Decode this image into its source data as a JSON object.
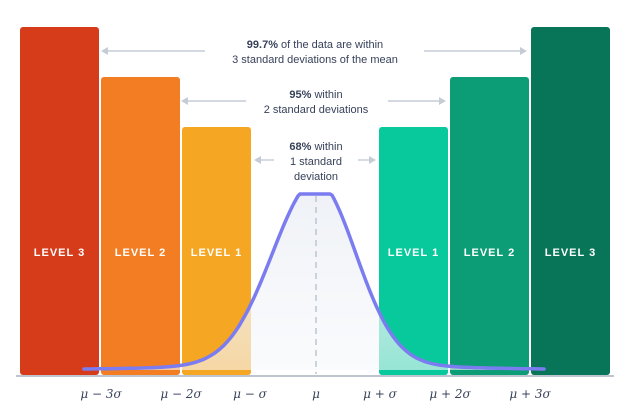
{
  "bars": [
    {
      "label": "LEVEL 3",
      "color": "#d63b1a"
    },
    {
      "label": "LEVEL 2",
      "color": "#f27d22"
    },
    {
      "label": "LEVEL 1",
      "color": "#f5a623"
    },
    {
      "label": "LEVEL 1",
      "color": "#08c99b"
    },
    {
      "label": "LEVEL 2",
      "color": "#0c9d77"
    },
    {
      "label": "LEVEL 3",
      "color": "#087558"
    }
  ],
  "annotations": {
    "three_sigma": {
      "bold": "99.7%",
      "rest": " of the data are within",
      "line2": "3 standard deviations of the mean"
    },
    "two_sigma": {
      "bold": "95%",
      "rest": " within",
      "line2": "2 standard deviations"
    },
    "one_sigma": {
      "bold": "68%",
      "rest": " within",
      "line2": "1 standard",
      "line3": "deviation"
    }
  },
  "axis_ticks": [
    "μ − 3σ",
    "μ − 2σ",
    "μ − σ",
    "μ",
    "μ + σ",
    "μ + 2σ",
    "μ + 3σ"
  ],
  "colors": {
    "curve": "#7b7cf0",
    "axis": "#a9b2bf",
    "arrow": "#c5ccd6",
    "text": "#37415a"
  }
}
